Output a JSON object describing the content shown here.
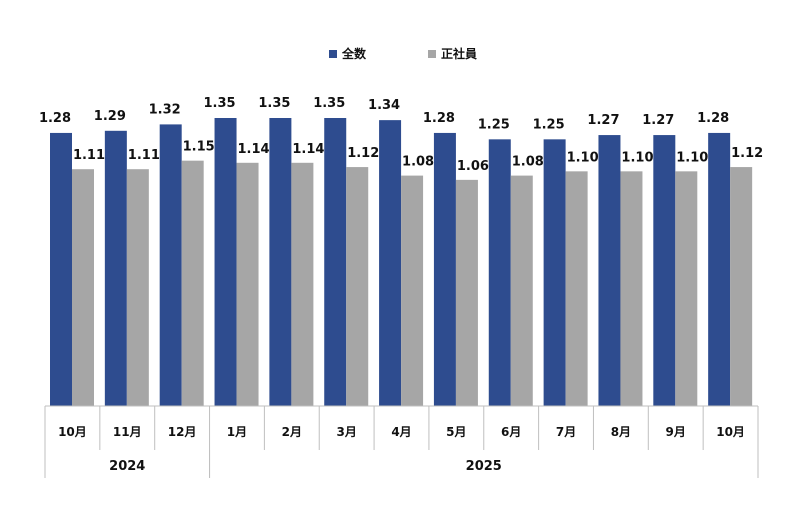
{
  "chart_data": {
    "type": "bar",
    "categories": [
      "10月",
      "11月",
      "12月",
      "1月",
      "2月",
      "3月",
      "4月",
      "5月",
      "6月",
      "7月",
      "8月",
      "9月",
      "10月"
    ],
    "groups": [
      {
        "label": "2024",
        "count": 3
      },
      {
        "label": "2025",
        "count": 10
      }
    ],
    "series": [
      {
        "name": "全数",
        "color": "#2e4c8f",
        "values": [
          1.28,
          1.29,
          1.32,
          1.35,
          1.35,
          1.35,
          1.34,
          1.28,
          1.25,
          1.25,
          1.27,
          1.27,
          1.28
        ],
        "labels": [
          "1.28",
          "1.29",
          "1.32",
          "1.35",
          "1.35",
          "1.35",
          "1.34",
          "1.28",
          "1.25",
          "1.25",
          "1.27",
          "1.27",
          "1.28"
        ]
      },
      {
        "name": "正社員",
        "color": "#a6a6a6",
        "values": [
          1.11,
          1.11,
          1.15,
          1.14,
          1.14,
          1.12,
          1.08,
          1.06,
          1.08,
          1.1,
          1.1,
          1.1,
          1.12
        ],
        "labels": [
          "1.11",
          "1.11",
          "1.15",
          "1.14",
          "1.14",
          "1.12",
          "1.08",
          "1.06",
          "1.08",
          "1.10",
          "1.10",
          "1.10",
          "1.12"
        ]
      }
    ],
    "ylim": [
      0,
      1.35
    ],
    "legend_position": "top-center",
    "grid": false
  }
}
